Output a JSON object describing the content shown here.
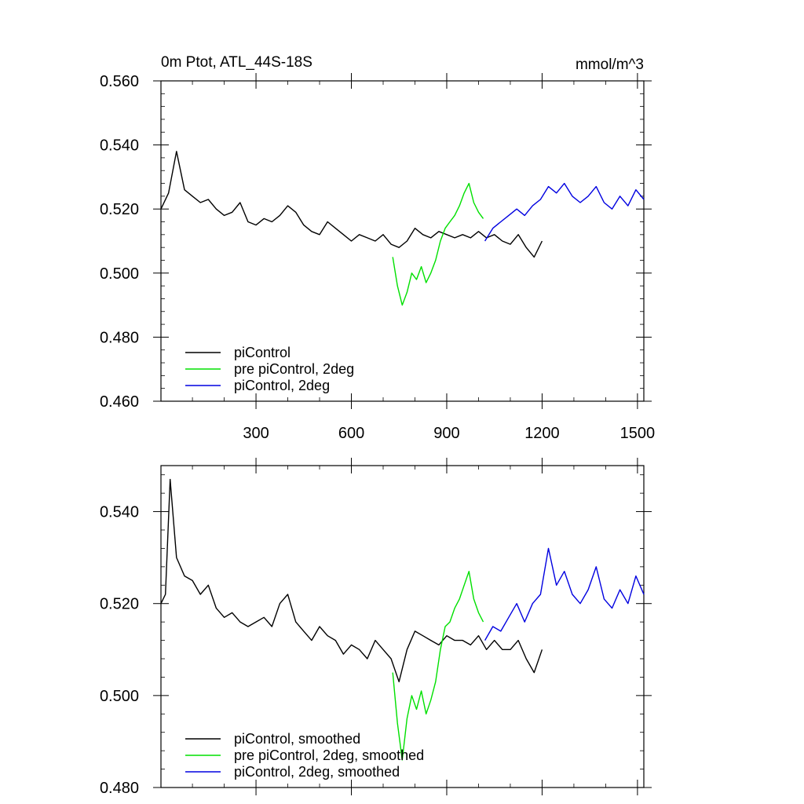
{
  "chart_data": [
    {
      "type": "line",
      "title": "0m Ptot, ATL_44S-18S",
      "units": "mmol/m^3",
      "xlabel": "",
      "ylabel": "",
      "xlim": [
        1,
        1520
      ],
      "ylim": [
        0.46,
        0.56
      ],
      "xticks": [
        300,
        600,
        900,
        1200,
        1500
      ],
      "xtick_labels": [
        "300",
        "600",
        "900",
        "1200",
        "1500"
      ],
      "yticks": [
        0.46,
        0.48,
        0.5,
        0.52,
        0.54,
        0.56
      ],
      "ytick_labels": [
        "0.460",
        "0.480",
        "0.500",
        "0.520",
        "0.540",
        "0.560"
      ],
      "grid": false,
      "legend_position": "bottom-left",
      "series": [
        {
          "name": "piControl",
          "color": "#000000",
          "x": [
            1,
            25,
            50,
            75,
            100,
            125,
            150,
            175,
            200,
            225,
            250,
            275,
            300,
            325,
            350,
            375,
            400,
            425,
            450,
            475,
            500,
            525,
            550,
            575,
            600,
            625,
            650,
            675,
            700,
            725,
            750,
            775,
            800,
            825,
            850,
            875,
            900,
            925,
            950,
            975,
            1000,
            1025,
            1050,
            1075,
            1100,
            1125,
            1150,
            1175,
            1200
          ],
          "y": [
            0.52,
            0.525,
            0.538,
            0.526,
            0.524,
            0.522,
            0.523,
            0.52,
            0.518,
            0.519,
            0.522,
            0.516,
            0.515,
            0.517,
            0.516,
            0.518,
            0.521,
            0.519,
            0.515,
            0.513,
            0.512,
            0.516,
            0.514,
            0.512,
            0.51,
            0.512,
            0.511,
            0.51,
            0.512,
            0.509,
            0.508,
            0.51,
            0.514,
            0.512,
            0.511,
            0.513,
            0.512,
            0.511,
            0.512,
            0.511,
            0.513,
            0.511,
            0.512,
            0.51,
            0.509,
            0.512,
            0.508,
            0.505,
            0.51
          ]
        },
        {
          "name": "pre piControl, 2deg",
          "color": "#00e000",
          "x": [
            730,
            745,
            760,
            775,
            790,
            805,
            820,
            835,
            850,
            865,
            880,
            895,
            910,
            925,
            940,
            955,
            970,
            985,
            1000,
            1015
          ],
          "y": [
            0.505,
            0.496,
            0.49,
            0.494,
            0.5,
            0.498,
            0.502,
            0.497,
            0.5,
            0.504,
            0.51,
            0.514,
            0.516,
            0.518,
            0.521,
            0.525,
            0.528,
            0.522,
            0.519,
            0.517
          ]
        },
        {
          "name": "piControl, 2deg",
          "color": "#0000e0",
          "x": [
            1020,
            1045,
            1070,
            1095,
            1120,
            1145,
            1170,
            1195,
            1220,
            1245,
            1270,
            1295,
            1320,
            1345,
            1370,
            1395,
            1420,
            1445,
            1470,
            1495,
            1520
          ],
          "y": [
            0.51,
            0.514,
            0.516,
            0.518,
            0.52,
            0.518,
            0.521,
            0.523,
            0.527,
            0.525,
            0.528,
            0.524,
            0.522,
            0.524,
            0.527,
            0.522,
            0.52,
            0.524,
            0.521,
            0.526,
            0.523
          ]
        }
      ]
    },
    {
      "type": "line",
      "title": "",
      "units": "",
      "xlabel": "",
      "ylabel": "",
      "xlim": [
        1,
        1520
      ],
      "ylim": [
        0.48,
        0.55
      ],
      "xticks": [
        300,
        600,
        900,
        1200,
        1500
      ],
      "xtick_labels": [],
      "yticks": [
        0.48,
        0.5,
        0.52,
        0.54
      ],
      "ytick_labels": [
        "0.480",
        "0.500",
        "0.520",
        "0.540"
      ],
      "grid": false,
      "legend_position": "bottom-left",
      "series": [
        {
          "name": "piControl, smoothed",
          "color": "#000000",
          "x": [
            1,
            15,
            30,
            50,
            75,
            100,
            125,
            150,
            175,
            200,
            225,
            250,
            275,
            300,
            325,
            350,
            375,
            400,
            425,
            450,
            475,
            500,
            525,
            550,
            575,
            600,
            625,
            650,
            675,
            700,
            725,
            750,
            775,
            800,
            825,
            850,
            875,
            900,
            925,
            950,
            975,
            1000,
            1025,
            1050,
            1075,
            1100,
            1125,
            1150,
            1175,
            1200
          ],
          "y": [
            0.52,
            0.522,
            0.547,
            0.53,
            0.526,
            0.525,
            0.522,
            0.524,
            0.519,
            0.517,
            0.518,
            0.516,
            0.515,
            0.516,
            0.517,
            0.515,
            0.52,
            0.522,
            0.516,
            0.514,
            0.512,
            0.515,
            0.513,
            0.512,
            0.509,
            0.511,
            0.51,
            0.508,
            0.512,
            0.51,
            0.508,
            0.503,
            0.51,
            0.514,
            0.513,
            0.512,
            0.511,
            0.513,
            0.512,
            0.512,
            0.511,
            0.513,
            0.51,
            0.512,
            0.51,
            0.51,
            0.512,
            0.508,
            0.505,
            0.51
          ]
        },
        {
          "name": "pre piControl, 2deg, smoothed",
          "color": "#00e000",
          "x": [
            730,
            745,
            760,
            775,
            790,
            805,
            820,
            835,
            850,
            865,
            880,
            895,
            910,
            925,
            940,
            955,
            970,
            985,
            1000,
            1015
          ],
          "y": [
            0.505,
            0.494,
            0.486,
            0.495,
            0.5,
            0.497,
            0.501,
            0.496,
            0.499,
            0.503,
            0.51,
            0.515,
            0.516,
            0.519,
            0.521,
            0.524,
            0.527,
            0.521,
            0.518,
            0.516
          ]
        },
        {
          "name": "piControl, 2deg, smoothed",
          "color": "#0000e0",
          "x": [
            1020,
            1045,
            1070,
            1095,
            1120,
            1145,
            1170,
            1195,
            1220,
            1245,
            1270,
            1295,
            1320,
            1345,
            1370,
            1395,
            1420,
            1445,
            1470,
            1495,
            1520
          ],
          "y": [
            0.512,
            0.515,
            0.514,
            0.517,
            0.52,
            0.516,
            0.52,
            0.522,
            0.532,
            0.524,
            0.527,
            0.522,
            0.52,
            0.523,
            0.528,
            0.521,
            0.519,
            0.523,
            0.52,
            0.526,
            0.522
          ]
        }
      ]
    }
  ]
}
